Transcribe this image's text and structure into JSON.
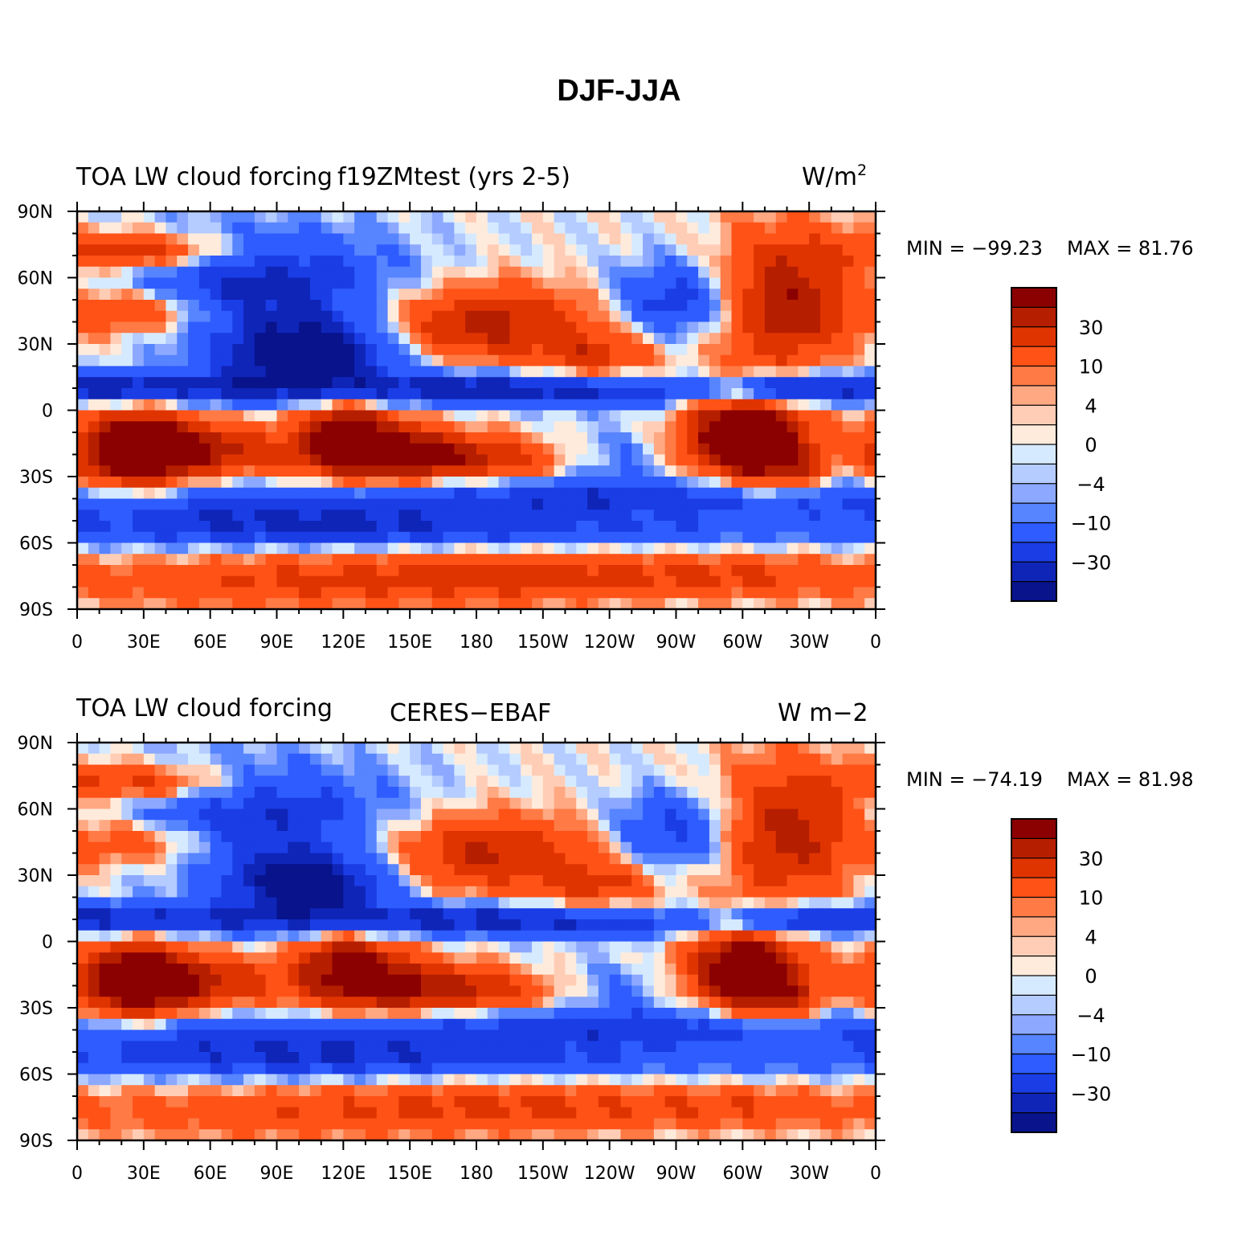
{
  "title": "DJF-JJA",
  "colors": {
    "levels": [
      "#8b0000",
      "#b61e00",
      "#e03400",
      "#ff5217",
      "#ff7a45",
      "#ffa882",
      "#ffcdb5",
      "#ffebdc",
      "#d6eaff",
      "#b4ccff",
      "#8ca9ff",
      "#5784ff",
      "#2e5cff",
      "#1a3de6",
      "#0f25b8",
      "#08138c"
    ]
  },
  "chart_data": [
    {
      "type": "heatmap",
      "title_left": "TOA LW cloud forcing",
      "title_center": "f19ZMtest (yrs 2-5)",
      "units": "W/m",
      "units_sup": "2",
      "min_label": "MIN = −99.23",
      "max_label": "MAX =  81.76",
      "min": -99.23,
      "max": 81.76,
      "colorbar_labels": [
        "30",
        "10",
        "4",
        "0",
        "−4",
        "−10",
        "−30"
      ],
      "xticks": [
        "0",
        "30E",
        "60E",
        "90E",
        "120E",
        "150E",
        "180",
        "150W",
        "120W",
        "90W",
        "60W",
        "30W",
        "0"
      ],
      "yticks": [
        "90N",
        "60N",
        "30N",
        "0",
        "30S",
        "60S",
        "90S"
      ],
      "xlim": [
        0,
        360
      ],
      "ylim": [
        -90,
        90
      ]
    },
    {
      "type": "heatmap",
      "title_left": "TOA LW cloud forcing",
      "title_center": "CERES−EBAF",
      "units": "W m−2",
      "units_sup": "",
      "min_label": "MIN = −74.19",
      "max_label": "MAX =  81.98",
      "min": -74.19,
      "max": 81.98,
      "colorbar_labels": [
        "30",
        "10",
        "4",
        "0",
        "−4",
        "−10",
        "−30"
      ],
      "xticks": [
        "0",
        "30E",
        "60E",
        "90E",
        "120E",
        "150E",
        "180",
        "150W",
        "120W",
        "90W",
        "60W",
        "30W",
        "0"
      ],
      "yticks": [
        "90N",
        "60N",
        "30N",
        "0",
        "30S",
        "60S",
        "90S"
      ],
      "xlim": [
        0,
        360
      ],
      "ylim": [
        -90,
        90
      ]
    }
  ]
}
